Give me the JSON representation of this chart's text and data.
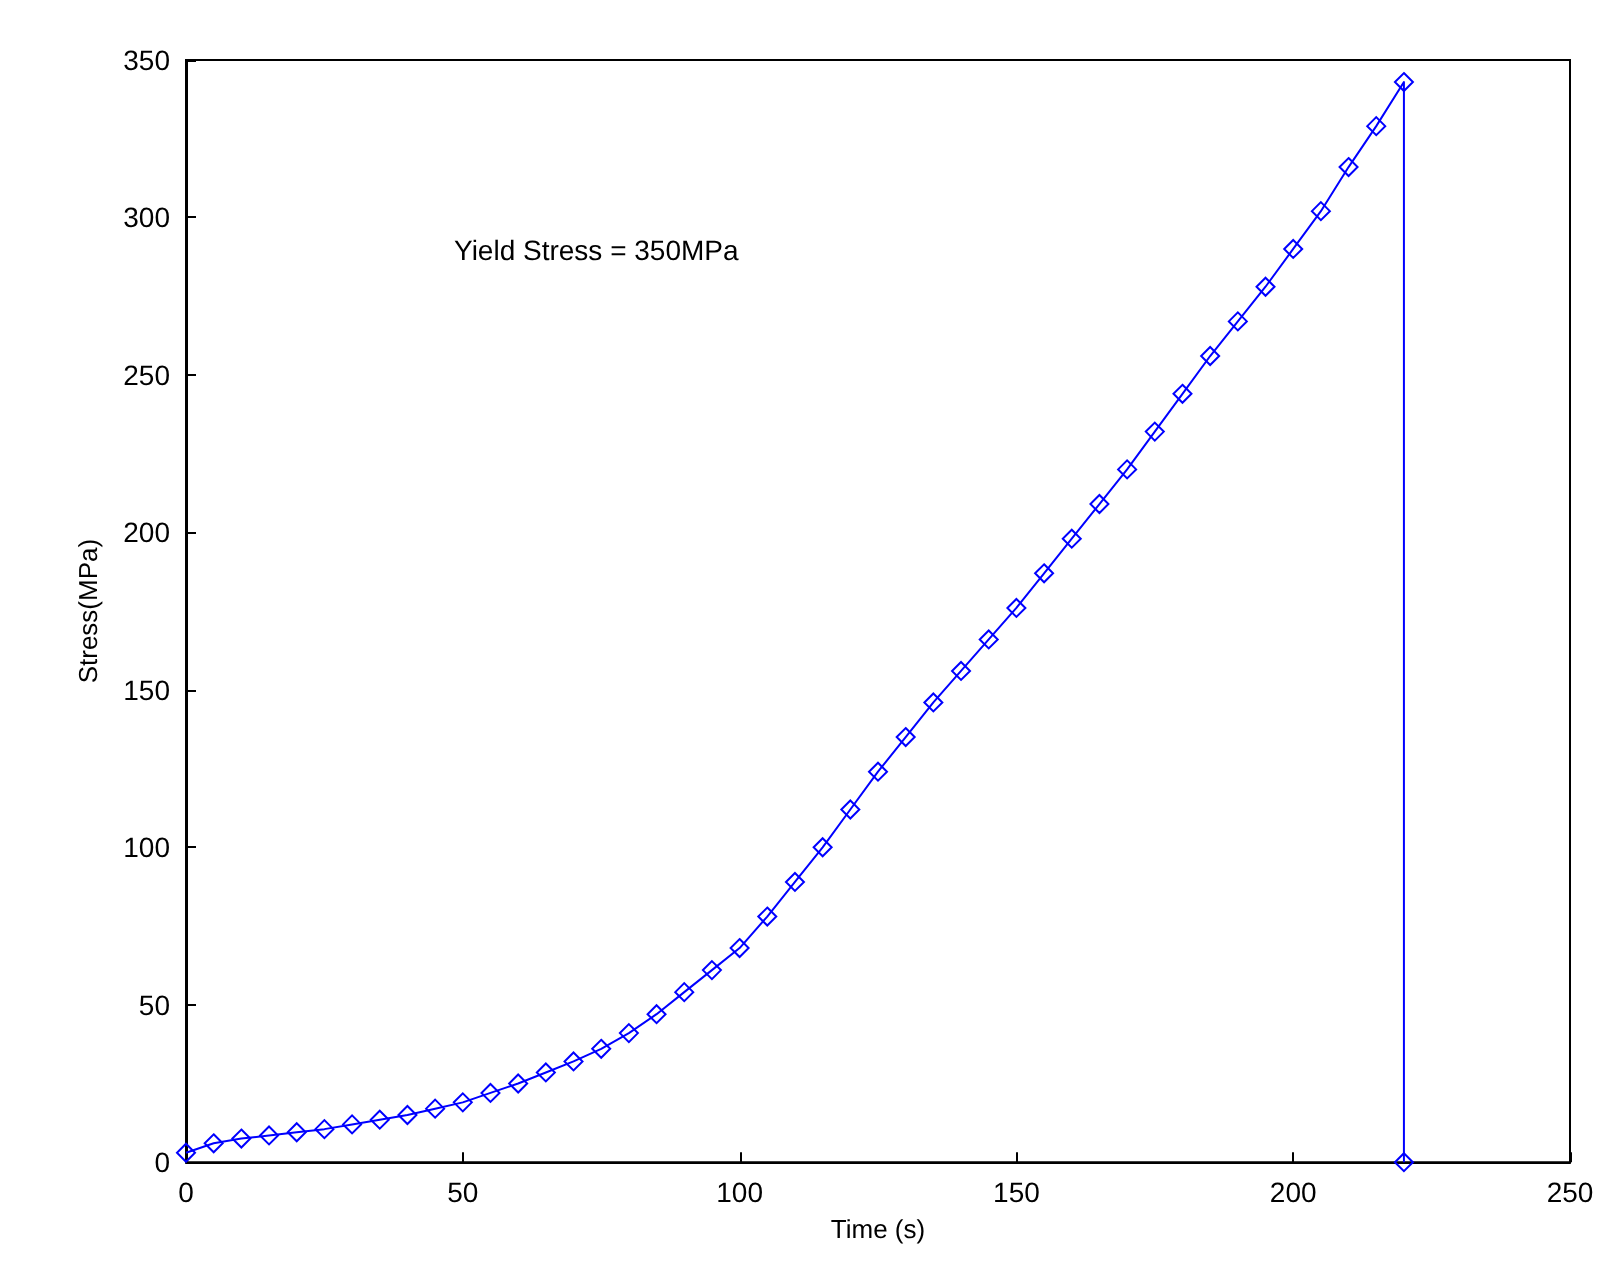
{
  "chart_data": {
    "type": "line",
    "xlabel": "Time (s)",
    "ylabel": "Stress(MPa)",
    "annotations": [
      "Yield Stress = 350MPa"
    ],
    "xlim": [
      0,
      250
    ],
    "xticks": [
      0,
      50,
      100,
      150,
      200,
      250
    ],
    "ylim": [
      0,
      350
    ],
    "yticks": [
      0,
      50,
      100,
      150,
      200,
      250,
      300,
      350
    ],
    "marker": "diamond",
    "line_style": "solid",
    "series": [
      {
        "color": "#0000ff",
        "x": [
          0,
          5,
          10,
          15,
          20,
          25,
          30,
          35,
          40,
          45,
          50,
          55,
          60,
          65,
          70,
          75,
          80,
          85,
          90,
          95,
          100,
          105,
          110,
          115,
          120,
          125,
          130,
          135,
          140,
          145,
          150,
          155,
          160,
          165,
          170,
          175,
          180,
          185,
          190,
          195,
          200,
          205,
          210,
          215,
          220,
          220
        ],
        "values": [
          3,
          6,
          7.5,
          8.5,
          9.5,
          10.5,
          12,
          13.5,
          15,
          17,
          19,
          22,
          25,
          28.5,
          32,
          36,
          41,
          47,
          54,
          61,
          68,
          78,
          89,
          100,
          112,
          124,
          135,
          146,
          156,
          166,
          176,
          187,
          198,
          209,
          220,
          232,
          244,
          256,
          267,
          278,
          290,
          302,
          316,
          329,
          343,
          0
        ]
      }
    ]
  }
}
